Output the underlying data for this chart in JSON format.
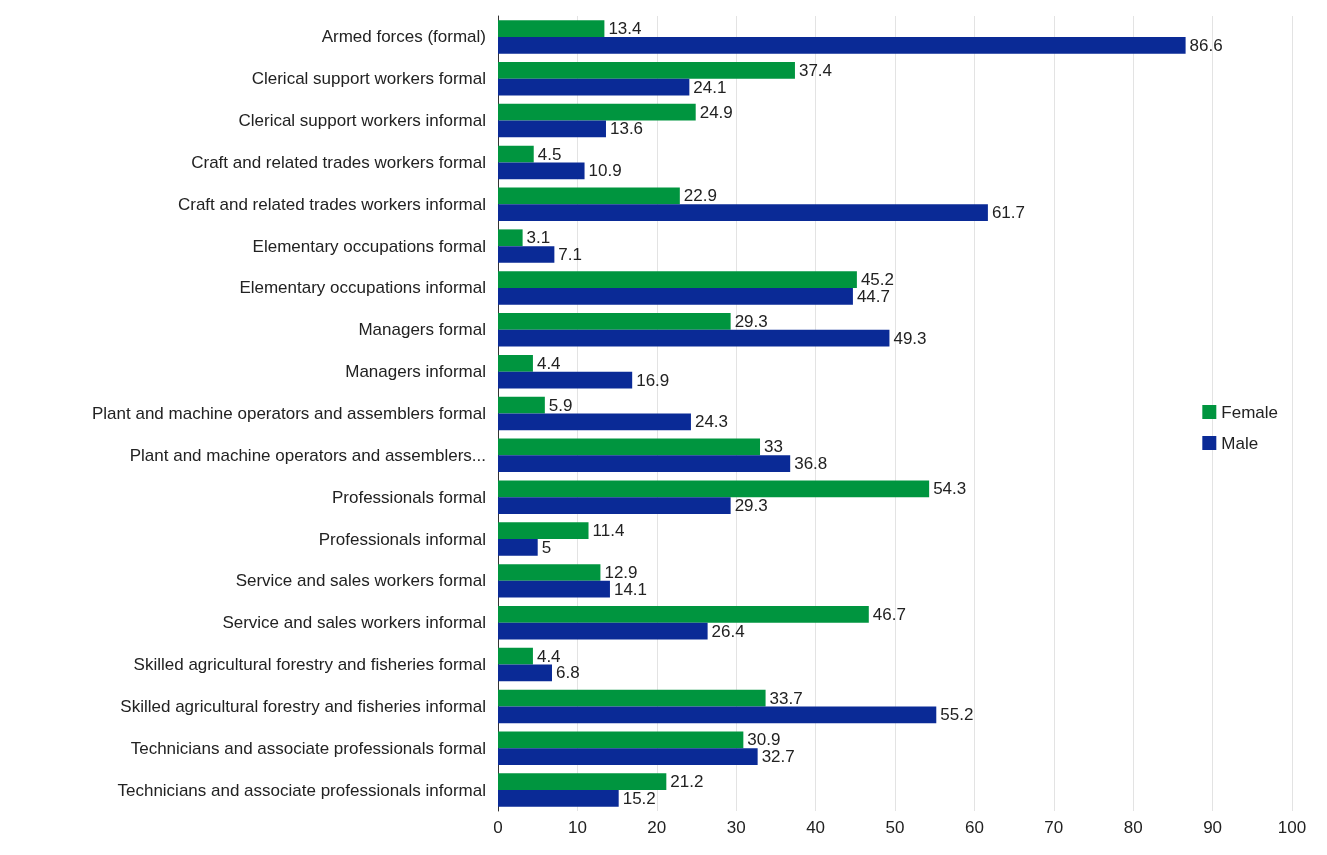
{
  "chart_data": {
    "type": "bar",
    "orientation": "horizontal",
    "categories": [
      "Armed forces (formal)",
      "Clerical support workers formal",
      "Clerical support workers informal",
      "Craft and related trades workers formal",
      "Craft and related trades workers informal",
      "Elementary occupations formal",
      "Elementary occupations informal",
      "Managers formal",
      "Managers informal",
      "Plant and machine operators and assemblers formal",
      "Plant and machine operators and assemblers...",
      "Professionals formal",
      "Professionals informal",
      "Service and sales workers formal",
      "Service and sales workers informal",
      "Skilled agricultural forestry and fisheries formal",
      "Skilled agricultural forestry and fisheries informal",
      "Technicians and associate professionals formal",
      "Technicians and associate professionals informal"
    ],
    "series": [
      {
        "name": "Female",
        "color": "#00953f",
        "values": [
          13.4,
          37.4,
          24.9,
          4.5,
          22.9,
          3.1,
          45.2,
          29.3,
          4.4,
          5.9,
          33,
          54.3,
          11.4,
          12.9,
          46.7,
          4.4,
          33.7,
          30.9,
          21.2
        ]
      },
      {
        "name": "Male",
        "color": "#0a2a96",
        "values": [
          86.6,
          24.1,
          13.6,
          10.9,
          61.7,
          7.1,
          44.7,
          49.3,
          16.9,
          24.3,
          36.8,
          29.3,
          5,
          14.1,
          26.4,
          6.8,
          55.2,
          32.7,
          15.2
        ]
      }
    ],
    "xlim": [
      0,
      100
    ],
    "xticks": [
      0,
      10,
      20,
      30,
      40,
      50,
      60,
      70,
      80,
      90,
      100
    ],
    "grid": "x",
    "legend": "right",
    "data_labels": true
  }
}
